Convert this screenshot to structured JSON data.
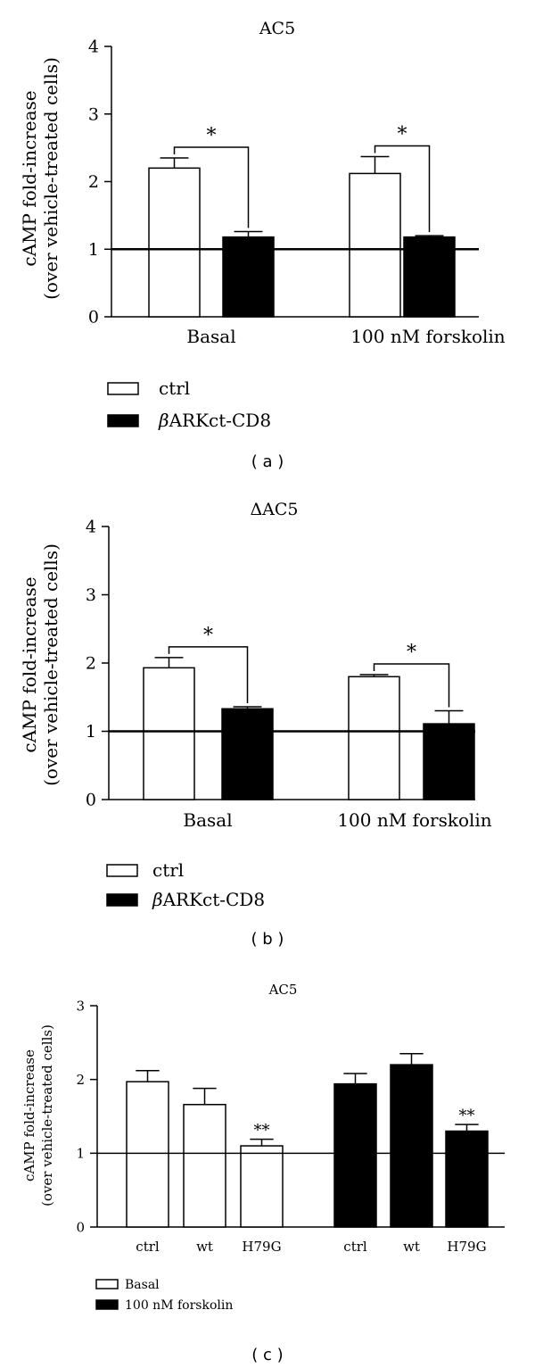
{
  "chart_data": [
    {
      "panel_label": "( a )",
      "type": "bar",
      "title": "AC5",
      "ylabel_lines": [
        "cAMP fold-increase",
        "(over vehicle-treated cells)"
      ],
      "ylim": [
        0,
        4
      ],
      "yticks": [
        0,
        1,
        2,
        3,
        4
      ],
      "reference_line": 1,
      "groups": [
        {
          "label": "Basal",
          "bars": [
            {
              "series": "ctrl",
              "value": 2.2,
              "error": 0.15
            },
            {
              "series": "βARKct-CD8",
              "value": 1.18,
              "error": 0.08
            }
          ],
          "significance": "*"
        },
        {
          "label": "100 nM forskolin",
          "bars": [
            {
              "series": "ctrl",
              "value": 2.12,
              "error": 0.25
            },
            {
              "series": "βARKct-CD8",
              "value": 1.18,
              "error": 0.02
            }
          ],
          "significance": "*"
        }
      ],
      "legend": [
        {
          "label": "ctrl",
          "fill": "#ffffff"
        },
        {
          "label": "βARKct-CD8",
          "fill": "#000000"
        }
      ],
      "legend_italic_prefix": true
    },
    {
      "panel_label": "( b )",
      "type": "bar",
      "title": "ΔAC5",
      "ylabel_lines": [
        "cAMP fold-increase",
        "(over vehicle-treated cells)"
      ],
      "ylim": [
        0,
        4
      ],
      "yticks": [
        0,
        1,
        2,
        3,
        4
      ],
      "reference_line": 1,
      "groups": [
        {
          "label": "Basal",
          "bars": [
            {
              "series": "ctrl",
              "value": 1.93,
              "error": 0.15
            },
            {
              "series": "βARKct-CD8",
              "value": 1.33,
              "error": 0.03
            }
          ],
          "significance": "*"
        },
        {
          "label": "100 nM forskolin",
          "bars": [
            {
              "series": "ctrl",
              "value": 1.8,
              "error": 0.03
            },
            {
              "series": "βARKct-CD8",
              "value": 1.11,
              "error": 0.19
            }
          ],
          "significance": "*"
        }
      ],
      "legend": [
        {
          "label": "ctrl",
          "fill": "#ffffff"
        },
        {
          "label": "βARKct-CD8",
          "fill": "#000000"
        }
      ],
      "legend_italic_prefix": true
    },
    {
      "panel_label": "( c )",
      "type": "bar",
      "title": "AC5",
      "ylabel_lines": [
        "cAMP fold-increase",
        "(over vehicle-treated cells)"
      ],
      "ylim": [
        0,
        3
      ],
      "yticks": [
        0,
        1,
        2,
        3
      ],
      "reference_line": 1,
      "groups": [
        {
          "series": "Basal",
          "bars": [
            {
              "label": "ctrl",
              "value": 1.97,
              "error": 0.15,
              "fill": "#ffffff"
            },
            {
              "label": "wt",
              "value": 1.66,
              "error": 0.22,
              "fill": "#ffffff"
            },
            {
              "label": "H79G",
              "value": 1.1,
              "error": 0.09,
              "fill": "#ffffff",
              "significance": "**"
            }
          ]
        },
        {
          "series": "100 nM forskolin",
          "bars": [
            {
              "label": "ctrl",
              "value": 1.94,
              "error": 0.14,
              "fill": "#000000"
            },
            {
              "label": "wt",
              "value": 2.2,
              "error": 0.15,
              "fill": "#000000"
            },
            {
              "label": "H79G",
              "value": 1.3,
              "error": 0.09,
              "fill": "#000000",
              "significance": "**"
            }
          ]
        }
      ],
      "legend": [
        {
          "label": "Basal",
          "fill": "#ffffff"
        },
        {
          "label": "100 nM forskolin",
          "fill": "#000000"
        }
      ]
    }
  ]
}
